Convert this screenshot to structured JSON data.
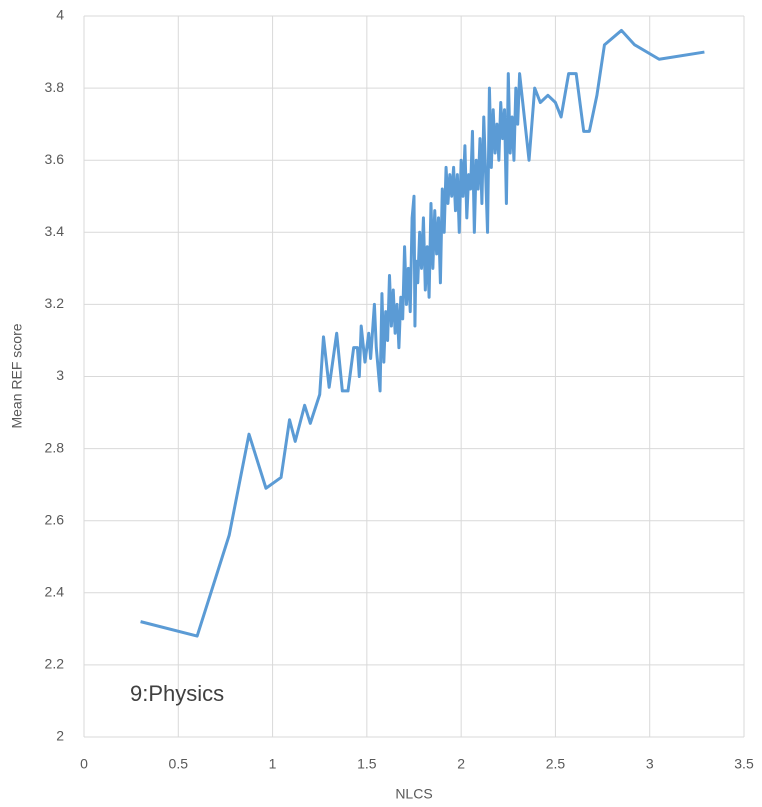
{
  "chart_data": {
    "type": "line",
    "x_label": "NLCS",
    "y_label": "Mean REF score",
    "annotation": "9:Physics",
    "xlim": [
      0,
      3.5
    ],
    "ylim": [
      2,
      4
    ],
    "xticks": [
      0,
      0.5,
      1,
      1.5,
      2,
      2.5,
      3,
      3.5
    ],
    "yticks": [
      2,
      2.2,
      2.4,
      2.6,
      2.8,
      3,
      3.2,
      3.4,
      3.6,
      3.8,
      4
    ],
    "grid": true,
    "x": [
      0.3,
      0.6,
      0.77,
      0.875,
      0.965,
      1.045,
      1.09,
      1.12,
      1.17,
      1.2,
      1.25,
      1.27,
      1.3,
      1.34,
      1.37,
      1.4,
      1.43,
      1.45,
      1.46,
      1.47,
      1.49,
      1.51,
      1.52,
      1.54,
      1.55,
      1.57,
      1.58,
      1.59,
      1.6,
      1.61,
      1.62,
      1.63,
      1.64,
      1.65,
      1.66,
      1.67,
      1.68,
      1.69,
      1.7,
      1.71,
      1.72,
      1.73,
      1.74,
      1.75,
      1.755,
      1.76,
      1.77,
      1.78,
      1.79,
      1.8,
      1.81,
      1.82,
      1.83,
      1.84,
      1.85,
      1.86,
      1.87,
      1.88,
      1.89,
      1.9,
      1.91,
      1.92,
      1.93,
      1.94,
      1.95,
      1.96,
      1.97,
      1.98,
      1.99,
      2.0,
      2.01,
      2.02,
      2.03,
      2.04,
      2.05,
      2.06,
      2.07,
      2.08,
      2.09,
      2.1,
      2.11,
      2.12,
      2.13,
      2.14,
      2.15,
      2.16,
      2.17,
      2.18,
      2.19,
      2.2,
      2.21,
      2.22,
      2.23,
      2.24,
      2.25,
      2.26,
      2.27,
      2.28,
      2.29,
      2.3,
      2.31,
      2.36,
      2.39,
      2.42,
      2.46,
      2.5,
      2.53,
      2.57,
      2.61,
      2.65,
      2.68,
      2.72,
      2.76,
      2.85,
      2.92,
      3.05,
      3.29
    ],
    "series": [
      {
        "color": "#5b9bd5",
        "values": [
          2.32,
          2.28,
          2.56,
          2.84,
          2.69,
          2.72,
          2.88,
          2.82,
          2.92,
          2.87,
          2.95,
          3.11,
          2.97,
          3.12,
          2.96,
          2.96,
          3.08,
          3.08,
          3.0,
          3.14,
          3.04,
          3.12,
          3.05,
          3.2,
          3.08,
          2.96,
          3.23,
          3.04,
          3.18,
          3.1,
          3.28,
          3.14,
          3.24,
          3.12,
          3.2,
          3.08,
          3.22,
          3.16,
          3.36,
          3.2,
          3.3,
          3.18,
          3.44,
          3.5,
          3.14,
          3.32,
          3.26,
          3.4,
          3.3,
          3.44,
          3.24,
          3.36,
          3.22,
          3.48,
          3.3,
          3.46,
          3.34,
          3.44,
          3.26,
          3.52,
          3.4,
          3.58,
          3.48,
          3.56,
          3.5,
          3.58,
          3.46,
          3.56,
          3.4,
          3.6,
          3.5,
          3.64,
          3.44,
          3.56,
          3.52,
          3.68,
          3.4,
          3.6,
          3.52,
          3.66,
          3.48,
          3.72,
          3.56,
          3.4,
          3.8,
          3.58,
          3.74,
          3.62,
          3.7,
          3.6,
          3.76,
          3.66,
          3.74,
          3.48,
          3.84,
          3.62,
          3.72,
          3.6,
          3.8,
          3.7,
          3.84,
          3.6,
          3.8,
          3.76,
          3.78,
          3.76,
          3.72,
          3.84,
          3.84,
          3.68,
          3.68,
          3.78,
          3.92,
          3.96,
          3.92,
          3.88,
          3.9
        ]
      }
    ]
  }
}
